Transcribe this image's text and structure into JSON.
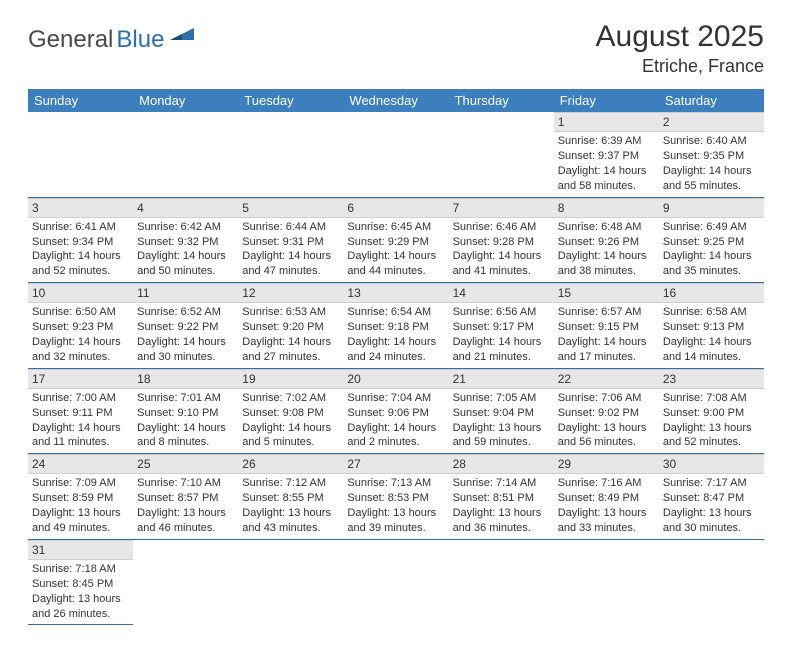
{
  "logo": {
    "textDark": "General",
    "textBlue": "Blue"
  },
  "title": "August 2025",
  "location": "Etriche, France",
  "colors": {
    "headerBg": "#3b7fbf",
    "headerText": "#ffffff",
    "rowDivider": "#2f6fa8",
    "dayNumBg": "#e7e7e7",
    "dayNumBorder": "#cfcfcf",
    "bodyText": "#333333",
    "logoBlue": "#2f6fa8",
    "logoDark": "#4a4a4a"
  },
  "weekdays": [
    "Sunday",
    "Monday",
    "Tuesday",
    "Wednesday",
    "Thursday",
    "Friday",
    "Saturday"
  ],
  "startWeekday": 5,
  "daysInMonth": 31,
  "days": {
    "1": {
      "sunrise": "6:39 AM",
      "sunset": "9:37 PM",
      "daylight": "14 hours and 58 minutes."
    },
    "2": {
      "sunrise": "6:40 AM",
      "sunset": "9:35 PM",
      "daylight": "14 hours and 55 minutes."
    },
    "3": {
      "sunrise": "6:41 AM",
      "sunset": "9:34 PM",
      "daylight": "14 hours and 52 minutes."
    },
    "4": {
      "sunrise": "6:42 AM",
      "sunset": "9:32 PM",
      "daylight": "14 hours and 50 minutes."
    },
    "5": {
      "sunrise": "6:44 AM",
      "sunset": "9:31 PM",
      "daylight": "14 hours and 47 minutes."
    },
    "6": {
      "sunrise": "6:45 AM",
      "sunset": "9:29 PM",
      "daylight": "14 hours and 44 minutes."
    },
    "7": {
      "sunrise": "6:46 AM",
      "sunset": "9:28 PM",
      "daylight": "14 hours and 41 minutes."
    },
    "8": {
      "sunrise": "6:48 AM",
      "sunset": "9:26 PM",
      "daylight": "14 hours and 38 minutes."
    },
    "9": {
      "sunrise": "6:49 AM",
      "sunset": "9:25 PM",
      "daylight": "14 hours and 35 minutes."
    },
    "10": {
      "sunrise": "6:50 AM",
      "sunset": "9:23 PM",
      "daylight": "14 hours and 32 minutes."
    },
    "11": {
      "sunrise": "6:52 AM",
      "sunset": "9:22 PM",
      "daylight": "14 hours and 30 minutes."
    },
    "12": {
      "sunrise": "6:53 AM",
      "sunset": "9:20 PM",
      "daylight": "14 hours and 27 minutes."
    },
    "13": {
      "sunrise": "6:54 AM",
      "sunset": "9:18 PM",
      "daylight": "14 hours and 24 minutes."
    },
    "14": {
      "sunrise": "6:56 AM",
      "sunset": "9:17 PM",
      "daylight": "14 hours and 21 minutes."
    },
    "15": {
      "sunrise": "6:57 AM",
      "sunset": "9:15 PM",
      "daylight": "14 hours and 17 minutes."
    },
    "16": {
      "sunrise": "6:58 AM",
      "sunset": "9:13 PM",
      "daylight": "14 hours and 14 minutes."
    },
    "17": {
      "sunrise": "7:00 AM",
      "sunset": "9:11 PM",
      "daylight": "14 hours and 11 minutes."
    },
    "18": {
      "sunrise": "7:01 AM",
      "sunset": "9:10 PM",
      "daylight": "14 hours and 8 minutes."
    },
    "19": {
      "sunrise": "7:02 AM",
      "sunset": "9:08 PM",
      "daylight": "14 hours and 5 minutes."
    },
    "20": {
      "sunrise": "7:04 AM",
      "sunset": "9:06 PM",
      "daylight": "14 hours and 2 minutes."
    },
    "21": {
      "sunrise": "7:05 AM",
      "sunset": "9:04 PM",
      "daylight": "13 hours and 59 minutes."
    },
    "22": {
      "sunrise": "7:06 AM",
      "sunset": "9:02 PM",
      "daylight": "13 hours and 56 minutes."
    },
    "23": {
      "sunrise": "7:08 AM",
      "sunset": "9:00 PM",
      "daylight": "13 hours and 52 minutes."
    },
    "24": {
      "sunrise": "7:09 AM",
      "sunset": "8:59 PM",
      "daylight": "13 hours and 49 minutes."
    },
    "25": {
      "sunrise": "7:10 AM",
      "sunset": "8:57 PM",
      "daylight": "13 hours and 46 minutes."
    },
    "26": {
      "sunrise": "7:12 AM",
      "sunset": "8:55 PM",
      "daylight": "13 hours and 43 minutes."
    },
    "27": {
      "sunrise": "7:13 AM",
      "sunset": "8:53 PM",
      "daylight": "13 hours and 39 minutes."
    },
    "28": {
      "sunrise": "7:14 AM",
      "sunset": "8:51 PM",
      "daylight": "13 hours and 36 minutes."
    },
    "29": {
      "sunrise": "7:16 AM",
      "sunset": "8:49 PM",
      "daylight": "13 hours and 33 minutes."
    },
    "30": {
      "sunrise": "7:17 AM",
      "sunset": "8:47 PM",
      "daylight": "13 hours and 30 minutes."
    },
    "31": {
      "sunrise": "7:18 AM",
      "sunset": "8:45 PM",
      "daylight": "13 hours and 26 minutes."
    }
  },
  "labels": {
    "sunrise": "Sunrise:",
    "sunset": "Sunset:",
    "daylight": "Daylight:"
  }
}
